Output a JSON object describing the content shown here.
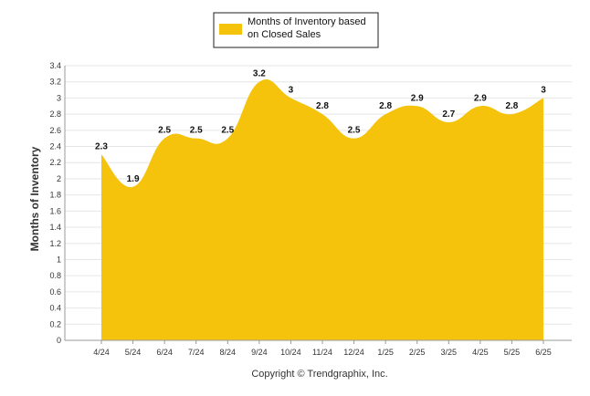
{
  "chart_data": {
    "type": "area",
    "categories": [
      "4/24",
      "5/24",
      "6/24",
      "7/24",
      "8/24",
      "9/24",
      "10/24",
      "11/24",
      "12/24",
      "1/25",
      "2/25",
      "3/25",
      "4/25",
      "5/25",
      "6/25"
    ],
    "series": [
      {
        "name": "Months of Inventory based on Closed Sales",
        "values": [
          2.3,
          1.9,
          2.5,
          2.5,
          2.5,
          3.2,
          3,
          2.8,
          2.5,
          2.8,
          2.9,
          2.7,
          2.9,
          2.8,
          3
        ]
      }
    ],
    "value_labels": [
      "2.3",
      "1.9",
      "2.5",
      "2.5",
      "2.5",
      "3.2",
      "3",
      "2.8",
      "2.5",
      "2.8",
      "2.9",
      "2.7",
      "2.9",
      "2.8",
      "3"
    ],
    "ylabel": "Months of Inventory",
    "ylim": [
      0,
      3.4
    ],
    "yticks": [
      "0",
      "0.2",
      "0.4",
      "0.6",
      "0.8",
      "1",
      "1.2",
      "1.4",
      "1.6",
      "1.8",
      "2",
      "2.2",
      "2.4",
      "2.6",
      "2.8",
      "3",
      "3.2",
      "3.4"
    ],
    "grid": true,
    "legend": {
      "position": "top-center",
      "lines": [
        "Months of Inventory based",
        "on Closed Sales"
      ]
    },
    "colors": {
      "fill": "#F5C30C",
      "grid": "#E6E6E6",
      "axis": "#999999"
    },
    "credit": "Copyright © Trendgraphix, Inc."
  }
}
